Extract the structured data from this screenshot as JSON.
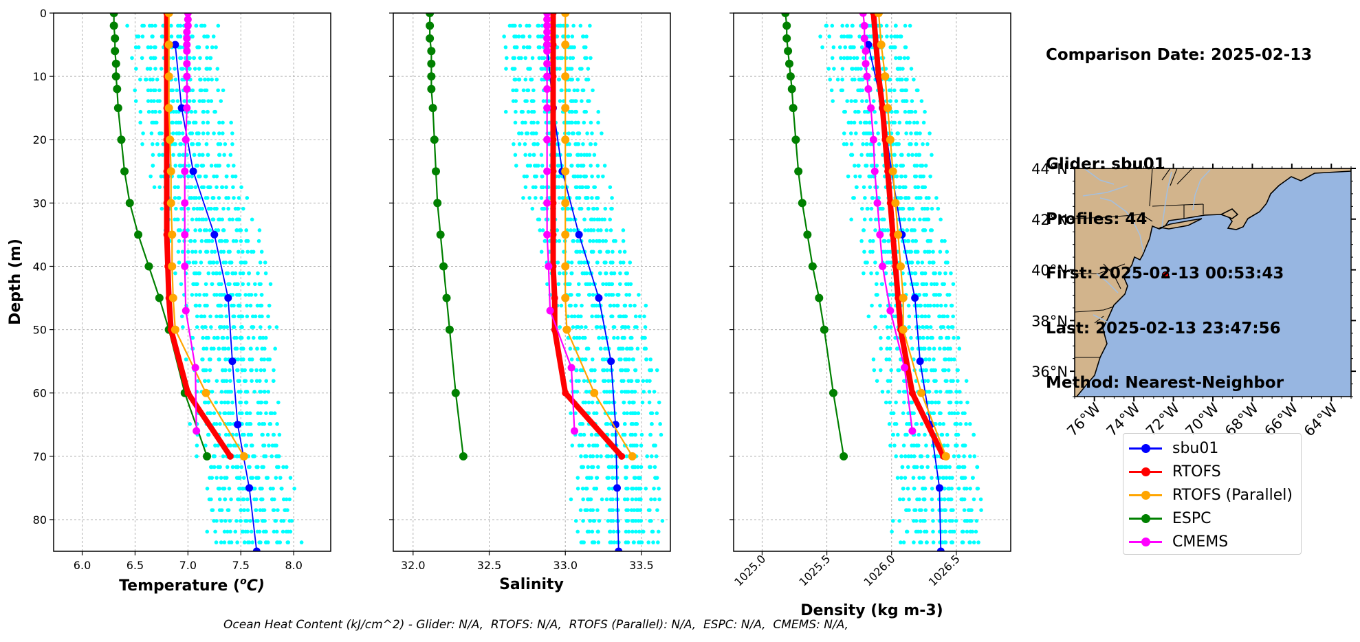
{
  "info": {
    "comparison_date": "Comparison Date: 2025-02-13",
    "glider": "Glider: sbu01",
    "profiles": "Profiles: 44",
    "first": "First: 2025-02-13 00:53:43",
    "last": "Last: 2025-02-13 23:47:56",
    "method": "Method: Nearest-Neighbor"
  },
  "footer": "Ocean Heat Content (kJ/cm^2) - Glider: N/A,  RTOFS: N/A,  RTOFS (Parallel): N/A,  ESPC: N/A,  CMEMS: N/A,",
  "colors": {
    "glider_scatter": "#00ffff",
    "sbu01": "#0000ff",
    "RTOFS": "#ff0000",
    "RTOFS (Parallel)": "#ffa500",
    "ESPC": "#008000",
    "CMEMS": "#ff00ff",
    "land": "#d2b48c",
    "ocean": "#97b6e1",
    "rivers": "#a5bfdd"
  },
  "legend": [
    "sbu01",
    "RTOFS",
    "RTOFS (Parallel)",
    "ESPC",
    "CMEMS"
  ],
  "chart_data": [
    {
      "type": "line",
      "xlabel": "Temperature ($^{o}C$)",
      "xlabel_display": "Temperature (",
      "xlabel_sup": "o",
      "xlabel_tail": "C)",
      "ylabel": "Depth (m)",
      "xlim": [
        5.73,
        8.35
      ],
      "ylim": [
        85,
        0
      ],
      "xticks": [
        6.0,
        6.5,
        7.0,
        7.5,
        8.0
      ],
      "xtick_labels": [
        "6.0",
        "6.5",
        "7.0",
        "7.5",
        "8.0"
      ],
      "yticks": [
        0,
        10,
        20,
        30,
        40,
        50,
        60,
        70,
        80
      ],
      "grid": true,
      "series": [
        {
          "name": "sbu01",
          "depth": [
            5,
            15,
            25,
            35,
            45,
            55,
            65,
            75,
            85
          ],
          "values": [
            6.88,
            6.94,
            7.05,
            7.25,
            7.38,
            7.42,
            7.47,
            7.58,
            7.65
          ]
        },
        {
          "name": "RTOFS",
          "depth": [
            0,
            5,
            10,
            15,
            20,
            25,
            30,
            35,
            40,
            45,
            50,
            60,
            70
          ],
          "values": [
            6.8,
            6.8,
            6.8,
            6.8,
            6.8,
            6.8,
            6.8,
            6.8,
            6.81,
            6.82,
            6.84,
            7.0,
            7.4
          ]
        },
        {
          "name": "RTOFS (Parallel)",
          "depth": [
            0,
            5,
            10,
            15,
            20,
            25,
            30,
            35,
            40,
            45,
            50,
            60,
            70
          ],
          "values": [
            6.82,
            6.82,
            6.82,
            6.82,
            6.83,
            6.84,
            6.84,
            6.85,
            6.85,
            6.86,
            6.88,
            7.17,
            7.53
          ]
        },
        {
          "name": "ESPC",
          "depth": [
            0,
            2,
            4,
            6,
            8,
            10,
            12,
            15,
            20,
            25,
            30,
            35,
            40,
            45,
            50,
            60,
            70
          ],
          "values": [
            6.3,
            6.3,
            6.31,
            6.31,
            6.32,
            6.32,
            6.33,
            6.34,
            6.37,
            6.4,
            6.45,
            6.53,
            6.63,
            6.73,
            6.82,
            6.97,
            7.18
          ]
        },
        {
          "name": "CMEMS",
          "depth": [
            0,
            1,
            2,
            3,
            4,
            5,
            6,
            8,
            10,
            12,
            15,
            20,
            25,
            30,
            35,
            40,
            47,
            56,
            66
          ],
          "values": [
            7.0,
            7.0,
            7.0,
            6.99,
            6.99,
            6.99,
            6.99,
            6.99,
            6.99,
            6.99,
            6.99,
            6.98,
            6.97,
            6.97,
            6.97,
            6.97,
            6.98,
            7.07,
            7.08
          ]
        }
      ]
    },
    {
      "type": "line",
      "xlabel": "Salinity",
      "xlim": [
        31.87,
        33.69
      ],
      "ylim": [
        85,
        0
      ],
      "xticks": [
        32.0,
        32.5,
        33.0,
        33.5
      ],
      "xtick_labels": [
        "32.0",
        "32.5",
        "33.0",
        "33.5"
      ],
      "yticks": [
        0,
        10,
        20,
        30,
        40,
        50,
        60,
        70,
        80
      ],
      "grid": true,
      "series": [
        {
          "name": "sbu01",
          "depth": [
            5,
            15,
            25,
            35,
            45,
            55,
            65,
            75,
            85
          ],
          "values": [
            32.88,
            32.92,
            32.98,
            33.09,
            33.22,
            33.3,
            33.33,
            33.34,
            33.35
          ]
        },
        {
          "name": "RTOFS",
          "depth": [
            0,
            5,
            10,
            15,
            20,
            25,
            30,
            35,
            40,
            45,
            50,
            60,
            70
          ],
          "values": [
            32.92,
            32.92,
            32.92,
            32.92,
            32.92,
            32.92,
            32.92,
            32.92,
            32.92,
            32.93,
            32.93,
            33.0,
            33.37
          ]
        },
        {
          "name": "RTOFS (Parallel)",
          "depth": [
            0,
            5,
            10,
            15,
            20,
            25,
            30,
            35,
            40,
            45,
            50,
            60,
            70
          ],
          "values": [
            33.0,
            33.0,
            33.0,
            33.0,
            33.0,
            33.0,
            33.0,
            33.0,
            33.0,
            33.0,
            33.01,
            33.19,
            33.44
          ]
        },
        {
          "name": "ESPC",
          "depth": [
            0,
            2,
            4,
            6,
            8,
            10,
            12,
            15,
            20,
            25,
            30,
            35,
            40,
            45,
            50,
            60,
            70
          ],
          "values": [
            32.11,
            32.11,
            32.11,
            32.12,
            32.12,
            32.12,
            32.12,
            32.13,
            32.14,
            32.15,
            32.16,
            32.18,
            32.2,
            32.22,
            32.24,
            32.28,
            32.33
          ]
        },
        {
          "name": "CMEMS",
          "depth": [
            0,
            1,
            2,
            3,
            4,
            5,
            6,
            8,
            10,
            12,
            15,
            20,
            25,
            30,
            35,
            40,
            47,
            56,
            66
          ],
          "values": [
            32.88,
            32.88,
            32.88,
            32.88,
            32.88,
            32.88,
            32.88,
            32.88,
            32.88,
            32.88,
            32.88,
            32.88,
            32.88,
            32.88,
            32.88,
            32.89,
            32.9,
            33.04,
            33.06
          ]
        }
      ]
    },
    {
      "type": "line",
      "xlabel": "Density (kg m-3)",
      "xlim": [
        1024.78,
        1026.92
      ],
      "ylim": [
        85,
        0
      ],
      "xticks": [
        1025.0,
        1025.5,
        1026.0,
        1026.5
      ],
      "xtick_labels": [
        "1025.0",
        "1025.5",
        "1026.0",
        "1026.5"
      ],
      "yticks": [
        0,
        10,
        20,
        30,
        40,
        50,
        60,
        70,
        80
      ],
      "grid": true,
      "series": [
        {
          "name": "sbu01",
          "depth": [
            5,
            15,
            25,
            35,
            45,
            55,
            65,
            75,
            85
          ],
          "values": [
            1025.82,
            1025.93,
            1026.0,
            1026.08,
            1026.18,
            1026.22,
            1026.3,
            1026.37,
            1026.38
          ]
        },
        {
          "name": "RTOFS",
          "depth": [
            0,
            5,
            10,
            15,
            20,
            25,
            30,
            35,
            40,
            45,
            50,
            60,
            70
          ],
          "values": [
            1025.86,
            1025.88,
            1025.9,
            1025.93,
            1025.95,
            1025.97,
            1025.99,
            1026.01,
            1026.03,
            1026.05,
            1026.07,
            1026.16,
            1026.4
          ]
        },
        {
          "name": "RTOFS (Parallel)",
          "depth": [
            0,
            5,
            10,
            15,
            20,
            25,
            30,
            35,
            40,
            45,
            50,
            60,
            70
          ],
          "values": [
            1025.9,
            1025.92,
            1025.95,
            1025.97,
            1025.99,
            1026.01,
            1026.03,
            1026.05,
            1026.07,
            1026.09,
            1026.09,
            1026.23,
            1026.42
          ]
        },
        {
          "name": "ESPC",
          "depth": [
            0,
            2,
            4,
            6,
            8,
            10,
            12,
            15,
            20,
            25,
            30,
            35,
            40,
            45,
            50,
            60,
            70
          ],
          "values": [
            1025.18,
            1025.19,
            1025.19,
            1025.2,
            1025.21,
            1025.22,
            1025.23,
            1025.24,
            1025.26,
            1025.28,
            1025.31,
            1025.35,
            1025.39,
            1025.44,
            1025.48,
            1025.55,
            1025.63
          ]
        },
        {
          "name": "CMEMS",
          "depth": [
            0,
            2,
            4,
            6,
            8,
            10,
            12,
            15,
            20,
            25,
            30,
            35,
            40,
            47,
            56,
            66
          ],
          "values": [
            1025.78,
            1025.79,
            1025.79,
            1025.8,
            1025.8,
            1025.81,
            1025.82,
            1025.84,
            1025.86,
            1025.87,
            1025.89,
            1025.91,
            1025.93,
            1025.99,
            1026.1,
            1026.16
          ]
        }
      ]
    },
    {
      "type": "map",
      "lat_ticks": [
        "44°N",
        "42°N",
        "40°N",
        "38°N",
        "36°N"
      ],
      "lat_values": [
        44,
        42,
        40,
        38,
        36
      ],
      "lon_ticks": [
        "76°W",
        "74°W",
        "72°W",
        "70°W",
        "68°W",
        "66°W",
        "64°W"
      ],
      "lon_values": [
        -76,
        -74,
        -72,
        -70,
        -68,
        -66,
        -64
      ],
      "extent": {
        "lon": [
          -77,
          -63
        ],
        "lat": [
          35,
          44
        ]
      },
      "glider_location": {
        "lat": 39.8,
        "lon": -72.4
      }
    }
  ]
}
